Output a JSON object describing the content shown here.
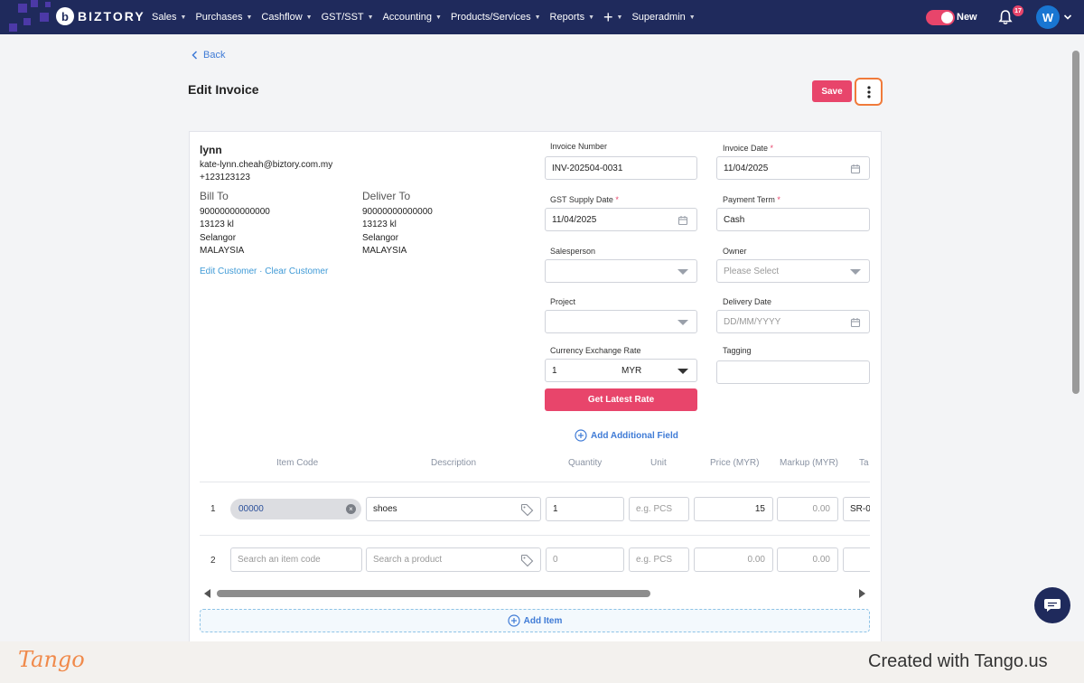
{
  "nav": {
    "brand": "BIZTORY",
    "items": [
      {
        "label": "Sales"
      },
      {
        "label": "Purchases"
      },
      {
        "label": "Cashflow"
      },
      {
        "label": "GST/SST"
      },
      {
        "label": "Accounting"
      },
      {
        "label": "Products/Services"
      },
      {
        "label": "Reports"
      },
      {
        "label": "+"
      },
      {
        "label": "Superadmin"
      }
    ],
    "toggle_label": "New",
    "notification_count": "17",
    "avatar_initial": "W"
  },
  "header": {
    "back_label": "Back",
    "title": "Edit Invoice",
    "save_label": "Save"
  },
  "customer": {
    "name": "lynn",
    "email": "kate-lynn.cheah@biztory.com.my",
    "phone": "+123123123",
    "bill_to": {
      "heading": "Bill To",
      "lines": [
        "90000000000000",
        "13123 kl",
        "Selangor",
        "MALAYSIA"
      ]
    },
    "deliver_to": {
      "heading": "Deliver To",
      "lines": [
        "90000000000000",
        "13123 kl",
        "Selangor",
        "MALAYSIA"
      ]
    },
    "edit_link": "Edit Customer",
    "separator": " · ",
    "clear_link": "Clear Customer"
  },
  "fields": {
    "invoice_number": {
      "label": "Invoice Number",
      "value": "INV-202504-0031"
    },
    "invoice_date": {
      "label": "Invoice Date",
      "value": "11/04/2025",
      "required": "*"
    },
    "gst_supply_date": {
      "label": "GST Supply Date",
      "value": "11/04/2025",
      "required": "*"
    },
    "payment_term": {
      "label": "Payment Term",
      "value": "Cash",
      "required": "*"
    },
    "salesperson": {
      "label": "Salesperson",
      "value": ""
    },
    "owner": {
      "label": "Owner",
      "placeholder": "Please Select"
    },
    "project": {
      "label": "Project",
      "value": ""
    },
    "delivery_date": {
      "label": "Delivery Date",
      "placeholder": "DD/MM/YYYY"
    },
    "currency_rate": {
      "label": "Currency Exchange Rate",
      "value": "1",
      "currency": "MYR"
    },
    "tagging": {
      "label": "Tagging",
      "value": ""
    },
    "rate_button": "Get Latest Rate",
    "add_field": "Add Additional Field"
  },
  "items_table": {
    "columns": [
      "Item Code",
      "Description",
      "Quantity",
      "Unit",
      "Price (MYR)",
      "Markup (MYR)",
      "Ta"
    ],
    "rows": [
      {
        "no": "1",
        "code": "00000",
        "description": "shoes",
        "quantity": "1",
        "unit_placeholder": "e.g. PCS",
        "price": "15",
        "markup": "0.00",
        "tax": "SR-0"
      },
      {
        "no": "2",
        "code_placeholder": "Search an item code",
        "description_placeholder": "Search a product",
        "quantity": "0",
        "unit_placeholder": "e.g. PCS",
        "price": "0.00",
        "markup": "0.00",
        "tax": ""
      }
    ],
    "add_item": "Add Item"
  },
  "footer": {
    "logo": "Tango",
    "credit": "Created with Tango.us"
  },
  "colors": {
    "nav_bg": "#1f2a5c",
    "accent": "#e8456b",
    "link": "#3f7bd6",
    "highlight": "#f07a3a"
  }
}
